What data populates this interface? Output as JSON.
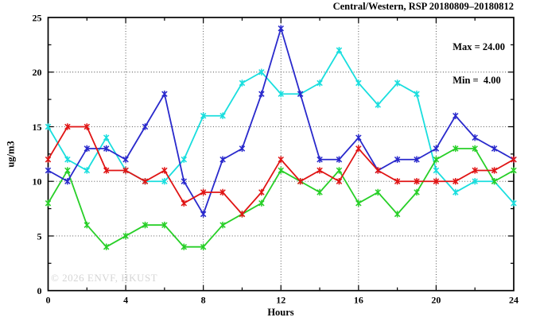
{
  "chart": {
    "title": "Central/Western, RSP 20180809–20180812",
    "annotation": {
      "max_label": "Max = 24.00",
      "min_label": "Min =  4.00"
    },
    "watermark": "© 2026 ENVF, HKUST",
    "xlabel": "Hours",
    "ylabel": "ug/m3"
  },
  "chart_data": {
    "type": "line",
    "title": "Central/Western, RSP 20180809–20180812",
    "xlabel": "Hours",
    "ylabel": "ug/m3",
    "xlim": [
      0,
      24
    ],
    "ylim": [
      0,
      25
    ],
    "x_ticks": [
      0,
      4,
      8,
      12,
      16,
      20,
      24
    ],
    "y_ticks": [
      0,
      5,
      10,
      15,
      20,
      25
    ],
    "x_minor_step": 2,
    "y_minor_step": 2.5,
    "grid": true,
    "legend": "none",
    "marker": "asterisk",
    "x": [
      0,
      1,
      2,
      3,
      4,
      5,
      6,
      7,
      8,
      9,
      10,
      11,
      12,
      13,
      14,
      15,
      16,
      17,
      18,
      19,
      20,
      21,
      22,
      23,
      24
    ],
    "series": [
      {
        "name": "series-cyan",
        "color": "#19dede",
        "values": [
          15,
          12,
          11,
          14,
          11,
          10,
          10,
          12,
          16,
          16,
          19,
          20,
          18,
          18,
          19,
          22,
          19,
          17,
          19,
          18,
          11,
          9,
          10,
          10,
          8
        ]
      },
      {
        "name": "series-green",
        "color": "#27cf27",
        "values": [
          8,
          11,
          6,
          4,
          5,
          6,
          6,
          4,
          4,
          6,
          7,
          8,
          11,
          10,
          9,
          11,
          8,
          9,
          7,
          9,
          12,
          13,
          13,
          10,
          11
        ]
      },
      {
        "name": "series-blue",
        "color": "#2929cc",
        "values": [
          11,
          10,
          13,
          13,
          12,
          15,
          18,
          10,
          7,
          12,
          13,
          18,
          24,
          18,
          12,
          12,
          14,
          11,
          12,
          12,
          13,
          16,
          14,
          13,
          12
        ]
      },
      {
        "name": "series-red",
        "color": "#e01414",
        "values": [
          12,
          15,
          15,
          11,
          11,
          10,
          11,
          8,
          9,
          9,
          7,
          9,
          12,
          10,
          11,
          10,
          13,
          11,
          10,
          10,
          10,
          10,
          11,
          11,
          12
        ]
      }
    ],
    "annotations": [
      "Max = 24.00",
      "Min =  4.00"
    ],
    "max": 24.0,
    "min": 4.0,
    "axis_color": "#000000",
    "grid_color": "#444444"
  }
}
